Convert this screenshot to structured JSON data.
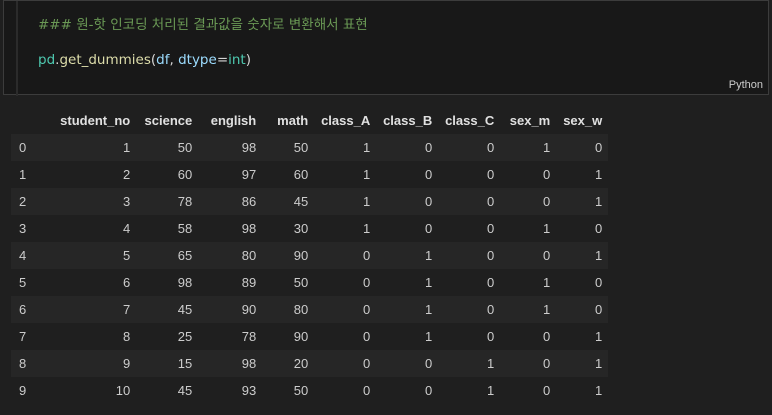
{
  "cell": {
    "comment": "### 원-핫 인코딩 처리된 결과값을 숫자로 변환해서 표현",
    "code": {
      "module": "pd",
      "dot": ".",
      "func": "get_dummies",
      "open_paren": "(",
      "arg1": "df",
      "comma": ", ",
      "param": "dtype",
      "equals": "=",
      "type": "int",
      "close_paren": ")"
    },
    "language": "Python"
  },
  "table": {
    "index_header": "",
    "columns": [
      "student_no",
      "science",
      "english",
      "math",
      "class_A",
      "class_B",
      "class_C",
      "sex_m",
      "sex_w"
    ],
    "rows": [
      {
        "index": "0",
        "values": [
          "1",
          "50",
          "98",
          "50",
          "1",
          "0",
          "0",
          "1",
          "0"
        ]
      },
      {
        "index": "1",
        "values": [
          "2",
          "60",
          "97",
          "60",
          "1",
          "0",
          "0",
          "0",
          "1"
        ]
      },
      {
        "index": "2",
        "values": [
          "3",
          "78",
          "86",
          "45",
          "1",
          "0",
          "0",
          "0",
          "1"
        ]
      },
      {
        "index": "3",
        "values": [
          "4",
          "58",
          "98",
          "30",
          "1",
          "0",
          "0",
          "1",
          "0"
        ]
      },
      {
        "index": "4",
        "values": [
          "5",
          "65",
          "80",
          "90",
          "0",
          "1",
          "0",
          "0",
          "1"
        ]
      },
      {
        "index": "5",
        "values": [
          "6",
          "98",
          "89",
          "50",
          "0",
          "1",
          "0",
          "1",
          "0"
        ]
      },
      {
        "index": "6",
        "values": [
          "7",
          "45",
          "90",
          "80",
          "0",
          "1",
          "0",
          "1",
          "0"
        ]
      },
      {
        "index": "7",
        "values": [
          "8",
          "25",
          "78",
          "90",
          "0",
          "1",
          "0",
          "0",
          "1"
        ]
      },
      {
        "index": "8",
        "values": [
          "9",
          "15",
          "98",
          "20",
          "0",
          "0",
          "1",
          "0",
          "1"
        ]
      },
      {
        "index": "9",
        "values": [
          "10",
          "45",
          "93",
          "50",
          "0",
          "0",
          "1",
          "0",
          "1"
        ]
      }
    ]
  },
  "colors": {
    "background": "#1f1f1f",
    "editor_background": "#181818",
    "comment": "#6a9955",
    "identifier": "#4ec9b0",
    "function": "#dcdcaa",
    "parameter": "#9cdcfe"
  }
}
